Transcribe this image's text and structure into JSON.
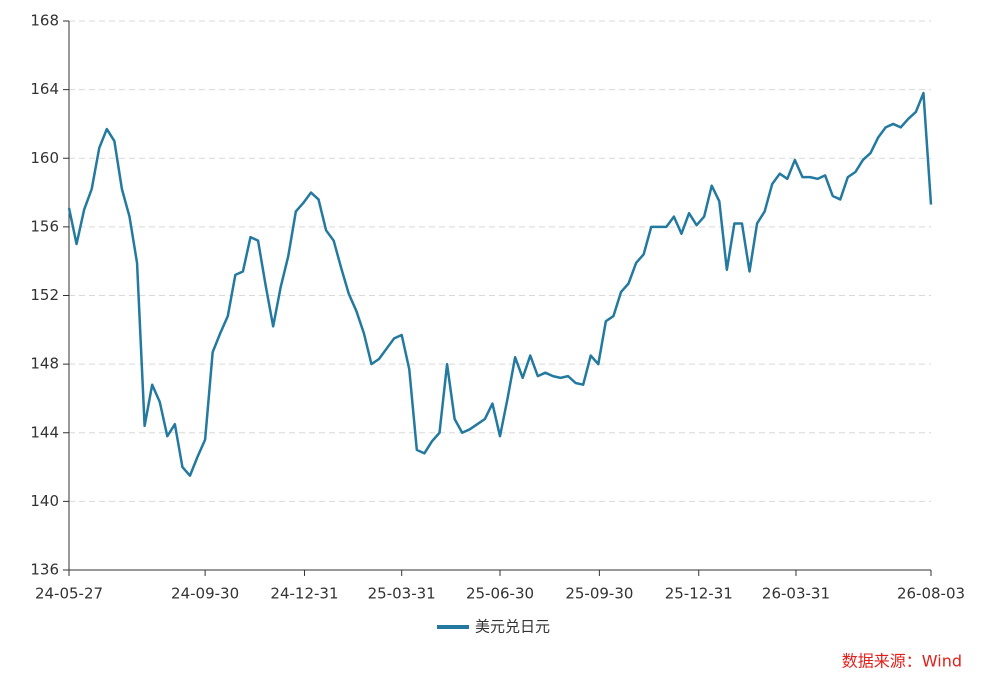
{
  "chart_data": {
    "type": "line",
    "x": [
      "24-05-27",
      "24-06-03",
      "24-06-10",
      "24-06-17",
      "24-06-24",
      "24-07-01",
      "24-07-08",
      "24-07-15",
      "24-07-22",
      "24-07-29",
      "24-08-05",
      "24-08-12",
      "24-08-19",
      "24-08-26",
      "24-09-02",
      "24-09-09",
      "24-09-16",
      "24-09-23",
      "24-09-30",
      "24-10-07",
      "24-10-14",
      "24-10-21",
      "24-10-28",
      "24-11-04",
      "24-11-11",
      "24-11-18",
      "24-11-25",
      "24-12-02",
      "24-12-09",
      "24-12-16",
      "24-12-23",
      "24-12-30",
      "25-01-06",
      "25-01-13",
      "25-01-20",
      "25-01-27",
      "25-02-03",
      "25-02-10",
      "25-02-17",
      "25-02-24",
      "25-03-03",
      "25-03-10",
      "25-03-17",
      "25-03-24",
      "25-03-31",
      "25-04-07",
      "25-04-14",
      "25-04-21",
      "25-04-28",
      "25-05-05",
      "25-05-12",
      "25-05-19",
      "25-05-26",
      "25-06-02",
      "25-06-09",
      "25-06-16",
      "25-06-23",
      "25-06-30",
      "25-07-07",
      "25-07-14",
      "25-07-21",
      "25-07-28",
      "25-08-04",
      "25-08-11",
      "25-08-18",
      "25-08-25",
      "25-09-01",
      "25-09-08",
      "25-09-15",
      "25-09-22",
      "25-09-29",
      "25-10-06",
      "25-10-13",
      "25-10-20",
      "25-10-27",
      "25-11-03",
      "25-11-10",
      "25-11-17",
      "25-11-24",
      "25-12-01",
      "25-12-08",
      "25-12-15",
      "25-12-22",
      "25-12-29",
      "26-01-05",
      "26-01-12",
      "26-01-19",
      "26-01-26",
      "26-02-02",
      "26-02-09",
      "26-02-16",
      "26-02-23",
      "26-03-02",
      "26-03-09",
      "26-03-16",
      "26-03-23",
      "26-03-30",
      "26-04-06",
      "26-04-13",
      "26-04-20",
      "26-04-27",
      "26-05-04",
      "26-05-11",
      "26-05-18",
      "26-05-25",
      "26-06-01",
      "26-06-08",
      "26-06-15",
      "26-06-22",
      "26-06-29",
      "26-07-06",
      "26-07-13",
      "26-07-20",
      "26-07-27",
      "26-08-03"
    ],
    "series": [
      {
        "name": "美元兑日元",
        "color": "#23799f",
        "values": [
          157.1,
          155,
          157,
          158.2,
          160.6,
          161.7,
          161,
          158.2,
          156.6,
          153.9,
          144.4,
          146.8,
          145.8,
          143.8,
          144.5,
          142,
          141.5,
          142.6,
          143.6,
          148.7,
          149.8,
          150.8,
          153.2,
          153.4,
          155.4,
          155.2,
          152.6,
          150.2,
          152.5,
          154.3,
          156.9,
          157.4,
          158,
          157.6,
          155.8,
          155.2,
          153.6,
          152.1,
          151.1,
          149.8,
          148,
          148.3,
          148.9,
          149.5,
          149.7,
          147.7,
          143,
          142.8,
          143.5,
          144,
          148,
          144.8,
          144,
          144.2,
          144.5,
          144.8,
          145.7,
          143.8,
          146,
          148.4,
          147.2,
          148.5,
          147.3,
          147.5,
          147.3,
          147.2,
          147.3,
          146.9,
          146.8,
          148.5,
          148,
          150.5,
          150.8,
          152.2,
          152.7,
          153.9,
          154.4,
          156,
          156,
          156,
          156.6,
          155.6,
          156.8,
          156.1,
          156.6,
          158.4,
          157.5,
          153.5,
          156.2,
          156.2,
          153.4,
          156.2,
          156.9,
          158.5,
          159.1,
          158.8,
          159.9,
          158.9,
          158.9,
          158.8,
          159,
          157.8,
          157.6,
          158.9,
          159.2,
          159.9,
          160.3,
          161.2,
          161.8,
          162,
          161.8,
          162.3,
          162.7,
          163.8,
          157.3
        ]
      }
    ],
    "xlim": [
      "24-05-27",
      "26-08-03"
    ],
    "xticks": [
      "24-05-27",
      "24-09-30",
      "24-12-31",
      "25-03-31",
      "25-06-30",
      "25-09-30",
      "25-12-31",
      "26-03-31",
      "26-08-03"
    ],
    "ylim": [
      136,
      168
    ],
    "yticks": [
      136,
      140,
      144,
      148,
      152,
      156,
      160,
      164,
      168
    ],
    "grid": true,
    "legend": "bottom",
    "source": "数据来源：Wind"
  }
}
